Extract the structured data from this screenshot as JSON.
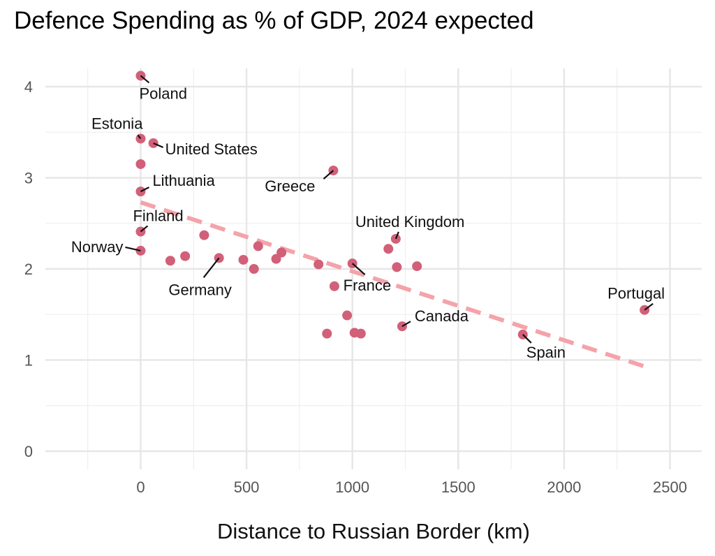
{
  "chart_data": {
    "type": "scatter",
    "title": "Defence Spending as % of GDP, 2024 expected",
    "xlabel": "Distance to Russian Border (km)",
    "ylabel": "",
    "xlim": [
      -450,
      2650
    ],
    "ylim": [
      -0.2,
      4.2
    ],
    "xticks": [
      0,
      500,
      1000,
      1500,
      2000,
      2500
    ],
    "yticks": [
      0,
      1,
      2,
      3,
      4
    ],
    "grid": true,
    "legend": "none",
    "point_color": "#d16078",
    "trend_color": "#f4a3aa",
    "trendline": {
      "style": "dashed",
      "x": [
        0,
        2380
      ],
      "y": [
        2.73,
        0.93
      ]
    },
    "points": [
      {
        "x": 0,
        "y": 4.12,
        "label": "Poland"
      },
      {
        "x": 0,
        "y": 3.43,
        "label": "Estonia"
      },
      {
        "x": 60,
        "y": 3.38,
        "label": "United States"
      },
      {
        "x": 0,
        "y": 3.15,
        "label": ""
      },
      {
        "x": 0,
        "y": 2.85,
        "label": "Lithuania"
      },
      {
        "x": 0,
        "y": 2.41,
        "label": "Finland"
      },
      {
        "x": 0,
        "y": 2.2,
        "label": "Norway"
      },
      {
        "x": 140,
        "y": 2.09,
        "label": ""
      },
      {
        "x": 210,
        "y": 2.14,
        "label": ""
      },
      {
        "x": 300,
        "y": 2.37,
        "label": ""
      },
      {
        "x": 370,
        "y": 2.12,
        "label": "Germany"
      },
      {
        "x": 485,
        "y": 2.1,
        "label": ""
      },
      {
        "x": 535,
        "y": 2.0,
        "label": ""
      },
      {
        "x": 555,
        "y": 2.25,
        "label": ""
      },
      {
        "x": 640,
        "y": 2.11,
        "label": ""
      },
      {
        "x": 665,
        "y": 2.18,
        "label": ""
      },
      {
        "x": 840,
        "y": 2.05,
        "label": ""
      },
      {
        "x": 880,
        "y": 1.29,
        "label": ""
      },
      {
        "x": 910,
        "y": 3.08,
        "label": "Greece"
      },
      {
        "x": 915,
        "y": 1.81,
        "label": ""
      },
      {
        "x": 975,
        "y": 1.49,
        "label": ""
      },
      {
        "x": 1000,
        "y": 2.06,
        "label": "France"
      },
      {
        "x": 1010,
        "y": 1.3,
        "label": ""
      },
      {
        "x": 1040,
        "y": 1.29,
        "label": ""
      },
      {
        "x": 1170,
        "y": 2.22,
        "label": ""
      },
      {
        "x": 1205,
        "y": 2.33,
        "label": "United Kingdom"
      },
      {
        "x": 1210,
        "y": 2.02,
        "label": ""
      },
      {
        "x": 1235,
        "y": 1.37,
        "label": "Canada"
      },
      {
        "x": 1305,
        "y": 2.03,
        "label": ""
      },
      {
        "x": 1805,
        "y": 1.28,
        "label": "Spain"
      },
      {
        "x": 2380,
        "y": 1.55,
        "label": "Portugal"
      }
    ]
  }
}
